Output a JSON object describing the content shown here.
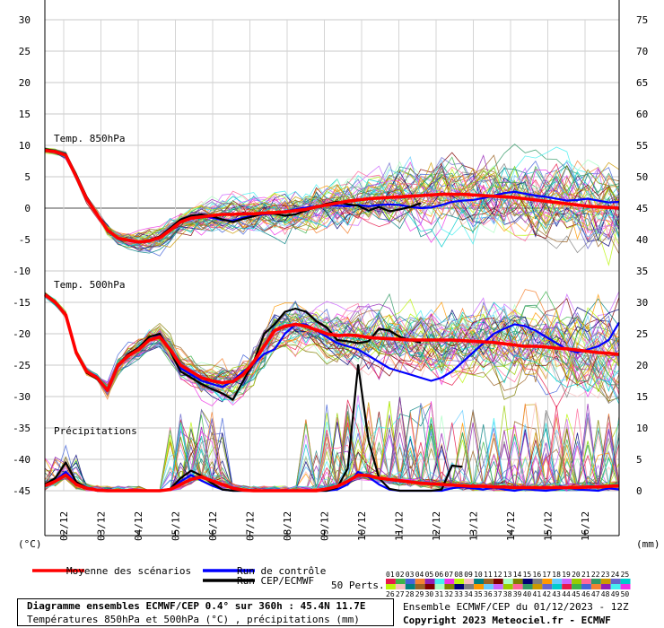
{
  "chart_data": {
    "type": "line",
    "left_axis": {
      "unit": "(°C)",
      "ticks": [
        30,
        25,
        20,
        15,
        10,
        5,
        0,
        -5,
        -10,
        -15,
        -20,
        -25,
        -30,
        -35,
        -40,
        -45
      ],
      "ylim": [
        -45,
        30
      ]
    },
    "right_axis": {
      "unit": "(mm)",
      "ticks": [
        75,
        70,
        65,
        60,
        55,
        50,
        45,
        40,
        35,
        30,
        25,
        20,
        15,
        10,
        5,
        0
      ],
      "ylim": [
        0,
        75
      ]
    },
    "x_labels": [
      "02/12",
      "03/12",
      "04/12",
      "05/12",
      "06/12",
      "07/12",
      "08/12",
      "09/12",
      "10/12",
      "11/12",
      "12/12",
      "13/12",
      "14/12",
      "15/12",
      "16/12"
    ],
    "section_labels": {
      "t850": "Temp. 850hPa",
      "t500": "Temp. 500hPa",
      "precip": "Précipitations"
    },
    "series": [
      {
        "name": "Moyenne des scénarios",
        "color": "#ff0000",
        "role": "mean"
      },
      {
        "name": "Run de contrôle",
        "color": "#0000ff",
        "role": "control"
      },
      {
        "name": "Run CEP/ECMWF",
        "color": "#000000",
        "role": "oper"
      }
    ],
    "members_label": "50 Perts.",
    "member_numbers_top": [
      "01",
      "02",
      "03",
      "04",
      "05",
      "06",
      "07",
      "08",
      "09",
      "10",
      "11",
      "12",
      "13",
      "14",
      "15",
      "16",
      "17",
      "18",
      "19",
      "20",
      "21",
      "22",
      "23",
      "24",
      "25"
    ],
    "member_numbers_bottom": [
      "26",
      "27",
      "28",
      "29",
      "30",
      "31",
      "32",
      "33",
      "34",
      "35",
      "36",
      "37",
      "38",
      "39",
      "40",
      "41",
      "42",
      "43",
      "44",
      "45",
      "46",
      "47",
      "48",
      "49",
      "50"
    ],
    "t850": {
      "mean": [
        9.2,
        9,
        8.4,
        5,
        1.5,
        -1,
        -3.5,
        -4.8,
        -5.1,
        -5.4,
        -5.2,
        -4.7,
        -3.5,
        -2.2,
        -1.6,
        -1.4,
        -1.2,
        -1,
        -1,
        -0.9,
        -0.9,
        -0.8,
        -0.7,
        -0.6,
        -0.4,
        -0.2,
        0.2,
        0.5,
        0.8,
        1.1,
        1.3,
        1.5,
        1.6,
        1.7,
        1.8,
        1.9,
        2,
        2.1,
        2.2,
        2.2,
        2.2,
        2.1,
        2,
        1.9,
        1.8,
        1.7,
        1.5,
        1.3,
        1.1,
        0.9,
        0.7,
        0.5,
        0.3,
        0.2,
        0.1,
        0
      ],
      "control": [
        9.3,
        9,
        8.5,
        5.2,
        1.6,
        -1,
        -3.5,
        -4.9,
        -5.2,
        -5.5,
        -5.3,
        -4.6,
        -3.4,
        -2,
        -1.5,
        -1.3,
        -1.5,
        -1.9,
        -2,
        -1.5,
        -1.2,
        -1,
        -0.8,
        -0.5,
        -0.2,
        0.1,
        0.3,
        0.5,
        0.4,
        0.3,
        0.5,
        0.3,
        0.5,
        0.6,
        0.5,
        0.2,
        0,
        0.1,
        0.5,
        1,
        1.2,
        1.3,
        1.6,
        2,
        2.4,
        2.6,
        2.3,
        2,
        1.8,
        1.5,
        1.2,
        1.3,
        1.5,
        1.2,
        0.9,
        1
      ],
      "oper": [
        9.4,
        9.1,
        8.6,
        5.3,
        1.8,
        -0.9,
        -3.4,
        -4.8,
        -5,
        -5.4,
        -5.1,
        -4.5,
        -3.2,
        -1.8,
        -1.2,
        -1,
        -1.3,
        -1.8,
        -2.2,
        -1.7,
        -1.3,
        -0.8,
        -0.9,
        -1.2,
        -1,
        -0.4,
        0.2,
        0.7,
        1,
        0.6,
        0.4,
        -0.4,
        0.2,
        -0.5,
        -0.2,
        0.2,
        0.8
      ]
    },
    "t500": {
      "mean": [
        -13.8,
        -15,
        -17,
        -23,
        -26,
        -27,
        -29,
        -25,
        -23.5,
        -22.5,
        -21,
        -20.5,
        -22.5,
        -25,
        -26,
        -27,
        -27.5,
        -27.8,
        -27.6,
        -26.5,
        -24.5,
        -22,
        -19.5,
        -18.8,
        -18.5,
        -18.8,
        -19.4,
        -20,
        -20.3,
        -20.2,
        -20.3,
        -20.6,
        -20.7,
        -20.8,
        -20.9,
        -21,
        -21,
        -21,
        -21,
        -21,
        -21.1,
        -21.2,
        -21.3,
        -21.4,
        -21.6,
        -21.8,
        -22,
        -22,
        -22.1,
        -22.3,
        -22.4,
        -22.6,
        -22.8,
        -23,
        -23.1,
        -23.3
      ],
      "control": [
        -13.7,
        -15,
        -17,
        -23,
        -26,
        -27,
        -29,
        -25,
        -23.5,
        -22.5,
        -21,
        -20.2,
        -22.5,
        -25.5,
        -26.5,
        -27.5,
        -28,
        -28.5,
        -27.5,
        -26,
        -24.8,
        -23.2,
        -22.5,
        -20,
        -18.5,
        -18.5,
        -19.5,
        -20.5,
        -21.5,
        -22,
        -22.5,
        -23.5,
        -24.5,
        -25.5,
        -26,
        -26.5,
        -27,
        -27.5,
        -27,
        -26,
        -24.5,
        -23,
        -21.5,
        -20,
        -19.2,
        -18.5,
        -18.8,
        -19.5,
        -20.5,
        -21.5,
        -22.5,
        -23,
        -22.5,
        -22,
        -21,
        -18.2
      ],
      "oper": [
        -13.6,
        -14.9,
        -17,
        -23.2,
        -26.2,
        -27.2,
        -29.1,
        -25,
        -23.2,
        -22.2,
        -20.5,
        -20,
        -22.8,
        -26,
        -27,
        -28,
        -28.8,
        -29.5,
        -30.5,
        -27.5,
        -24.5,
        -20,
        -18.5,
        -16.5,
        -16,
        -16.5,
        -18,
        -19,
        -21,
        -21.2,
        -21.5,
        -21.2,
        -19.2,
        -19.5,
        -20.5,
        -21,
        -21.4
      ]
    },
    "precip": {
      "mean": [
        0.8,
        1.5,
        2.5,
        1,
        0.4,
        0.1,
        0,
        0,
        0,
        0,
        0,
        0,
        0.2,
        1,
        1.8,
        2.2,
        1.6,
        1,
        0.4,
        0.1,
        0,
        0,
        0,
        0,
        0,
        0,
        0,
        0.3,
        0.7,
        1.5,
        2.5,
        2.4,
        2,
        1.8,
        1.6,
        1.4,
        1.2,
        1.1,
        1,
        0.9,
        0.8,
        0.7,
        0.7,
        0.6,
        0.6,
        0.5,
        0.5,
        0.5,
        0.5,
        0.5,
        0.5,
        0.5,
        0.6,
        0.6,
        0.7,
        0.8
      ],
      "control": [
        0.8,
        1.6,
        3,
        1.2,
        0.4,
        0,
        0,
        0,
        0,
        0,
        0,
        0,
        0.2,
        1.5,
        2.5,
        1.6,
        0.8,
        0.2,
        0,
        0,
        0,
        0,
        0,
        0,
        0,
        0,
        0,
        0,
        0.2,
        1,
        3,
        2.2,
        1,
        0.2,
        0,
        0,
        0,
        0,
        0,
        0.4,
        0.6,
        0.4,
        0.2,
        0.5,
        0.2,
        0,
        0.3,
        0.1,
        0,
        0.2,
        0.5,
        0.2,
        0.1,
        0,
        0.4,
        0.2
      ],
      "oper": [
        1,
        2,
        4.5,
        1.4,
        0.5,
        0,
        0,
        0,
        0,
        0,
        0,
        0,
        0.3,
        2,
        3.2,
        2.4,
        1.2,
        0.2,
        0,
        0,
        0,
        0,
        0,
        0,
        0,
        0,
        0,
        0,
        0.5,
        3.5,
        20,
        8,
        2,
        0.3,
        0,
        0,
        0,
        0,
        0.2,
        4,
        3.8
      ]
    }
  },
  "legend": {
    "mean_label": "Moyenne des scénarios",
    "control_label": "Run de contrôle",
    "oper_label": "Run CEP/ECMWF"
  },
  "footer": {
    "title": "Diagramme ensembles ECMWF/CEP 0.4° sur 360h : 45.4N 11.7E",
    "subtitle": "Températures 850hPa et 500hPa (°C) , précipitations (mm)",
    "run_info": "Ensemble ECMWF/CEP du 01/12/2023 - 12Z",
    "copyright": "Copyright 2023 Meteociel.fr - ECMWF"
  }
}
